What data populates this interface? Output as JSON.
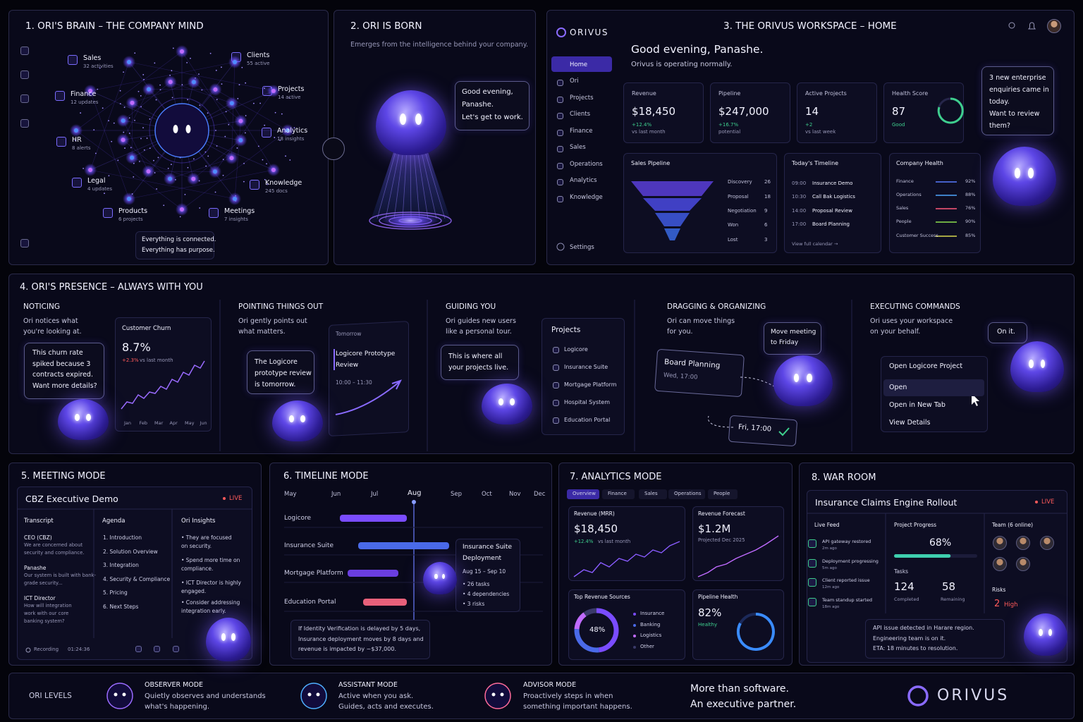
{
  "panel1": {
    "title": "1.  ORI'S BRAIN – THE COMPANY MIND",
    "nodes": [
      {
        "label": "Sales",
        "sub": "32 activities"
      },
      {
        "label": "Clients",
        "sub": "55 active"
      },
      {
        "label": "Finance",
        "sub": "12 updates"
      },
      {
        "label": "Projects",
        "sub": "14 active"
      },
      {
        "label": "HR",
        "sub": "8 alerts"
      },
      {
        "label": "Analytics",
        "sub": "18 insights"
      },
      {
        "label": "Legal",
        "sub": "4 updates"
      },
      {
        "label": "Knowledge",
        "sub": "245 docs"
      },
      {
        "label": "Products",
        "sub": "6 projects"
      },
      {
        "label": "Meetings",
        "sub": "7 insights"
      }
    ],
    "caption": [
      "Everything is connected.",
      "Everything has purpose."
    ]
  },
  "panel2": {
    "title": "2.  ORI IS BORN",
    "subtitle": "Emerges from the intelligence behind your company.",
    "bubble": [
      "Good evening,",
      "Panashe.",
      "Let's get to work."
    ]
  },
  "panel3": {
    "title": "3.  THE ORIVUS WORKSPACE – HOME",
    "brand": "ORIVUS",
    "nav": [
      "Home",
      "Ori",
      "Projects",
      "Clients",
      "Finance",
      "Sales",
      "Operations",
      "Analytics",
      "Knowledge"
    ],
    "settings": "Settings",
    "greeting": "Good evening, Panashe.",
    "status": "Orivus is operating normally.",
    "kpis": [
      {
        "label": "Revenue",
        "value": "$18,450",
        "delta": "+12.4%",
        "note": "vs last month"
      },
      {
        "label": "Pipeline",
        "value": "$247,000",
        "delta": "+16.7%",
        "note": "potential"
      },
      {
        "label": "Active Projects",
        "value": "14",
        "delta": "+2",
        "note": "vs last week"
      },
      {
        "label": "Health Score",
        "value": "87",
        "delta": "Good"
      }
    ],
    "pipeline": {
      "title": "Sales Pipeline",
      "stages": [
        {
          "name": "Discovery",
          "count": "26"
        },
        {
          "name": "Proposal",
          "count": "18"
        },
        {
          "name": "Negotiation",
          "count": "9"
        },
        {
          "name": "Won",
          "count": "6"
        },
        {
          "name": "Lost",
          "count": "3"
        }
      ]
    },
    "timeline": {
      "title": "Today's Timeline",
      "items": [
        {
          "time": "09:00",
          "label": "Insurance Demo"
        },
        {
          "time": "10:30",
          "label": "Call Bak Logistics"
        },
        {
          "time": "14:00",
          "label": "Proposal Review"
        },
        {
          "time": "17:00",
          "label": "Board Planning"
        }
      ],
      "link": "View full calendar →"
    },
    "health": {
      "title": "Company Health",
      "items": [
        {
          "name": "Finance",
          "value": "92%"
        },
        {
          "name": "Operations",
          "value": "88%"
        },
        {
          "name": "Sales",
          "value": "76%"
        },
        {
          "name": "People",
          "value": "90%"
        },
        {
          "name": "Customer Success",
          "value": "85%"
        }
      ]
    },
    "bubble": [
      "3 new enterprise",
      "enquiries came in",
      "today.",
      "Want to review",
      "them?"
    ]
  },
  "panel4": {
    "title": "4.  ORI'S PRESENCE – ALWAYS WITH YOU",
    "noticing": {
      "heading": "NOTICING",
      "desc": [
        "Ori notices what",
        "you're looking at."
      ],
      "bubble": [
        "This churn rate",
        "spiked because 3",
        "contracts expired.",
        "Want more details?"
      ],
      "card": {
        "title": "Customer Churn",
        "value": "8.7%",
        "delta": "+2.3%",
        "note": "vs last month",
        "months": [
          "Jan",
          "Feb",
          "Mar",
          "Apr",
          "May",
          "Jun"
        ]
      }
    },
    "pointing": {
      "heading": "POINTING THINGS OUT",
      "desc": [
        "Ori gently points out",
        "what matters."
      ],
      "bubble": [
        "The Logicore",
        "prototype review",
        "is tomorrow."
      ],
      "card": {
        "header": "Tomorrow",
        "title": [
          "Logicore Prototype",
          "Review"
        ],
        "time": "10:00 – 11:30"
      }
    },
    "guiding": {
      "heading": "GUIDING YOU",
      "desc": [
        "Ori guides new users",
        "like a personal tour."
      ],
      "bubble": [
        "This is where all",
        "your projects live."
      ],
      "card": {
        "title": "Projects",
        "items": [
          "Logicore",
          "Insurance Suite",
          "Mortgage Platform",
          "Hospital System",
          "Education Portal"
        ]
      }
    },
    "dragging": {
      "heading": "DRAGGING & ORGANIZING",
      "desc": [
        "Ori can move things",
        "for you."
      ],
      "card": {
        "title": "Board Planning",
        "time": "Wed, 17:00"
      },
      "bubble": [
        "Move meeting",
        "to Friday"
      ],
      "target": "Fri, 17:00"
    },
    "executing": {
      "heading": "EXECUTING COMMANDS",
      "desc": [
        "Ori uses your workspace",
        "on your behalf."
      ],
      "bubble": "On it.",
      "menu": [
        "Open Logicore Project",
        "Open",
        "Open in New Tab",
        "View Details"
      ]
    }
  },
  "panel5": {
    "title": "5.  MEETING MODE",
    "header": "CBZ Executive Demo",
    "live": "LIVE",
    "transcript": {
      "title": "Transcript",
      "entries": [
        {
          "speaker": "CEO (CBZ)",
          "text": [
            "We are concerned about",
            "security and compliance."
          ]
        },
        {
          "speaker": "Panashe",
          "text": [
            "Our system is built with bank-",
            "grade security..."
          ]
        },
        {
          "speaker": "ICT Director",
          "text": [
            "How will integration",
            "work with our core",
            "banking system?"
          ]
        }
      ]
    },
    "agenda": {
      "title": "Agenda",
      "items": [
        "1. Introduction",
        "2. Solution Overview",
        "3. Integration",
        "4. Security & Compliance",
        "5. Pricing",
        "6. Next Steps"
      ]
    },
    "insights": {
      "title": "Ori Insights",
      "items": [
        [
          "• They are focused",
          "on security."
        ],
        [
          "• Spend more time on",
          "compliance."
        ],
        [
          "• ICT Director is highly",
          "engaged."
        ],
        [
          "• Consider addressing",
          "integration early."
        ]
      ]
    },
    "recording": "Recording",
    "time": "01:24:36"
  },
  "panel6": {
    "title": "6.  TIMELINE MODE",
    "months": [
      "May",
      "Jun",
      "Jul",
      "Aug",
      "Sep",
      "Oct",
      "Nov",
      "Dec"
    ],
    "rows": [
      "Logicore",
      "Insurance Suite",
      "Mortgage Platform",
      "Education Portal"
    ],
    "tooltip": {
      "title": [
        "Insurance Suite",
        "Deployment"
      ],
      "dates": "Aug 15 – Sep 10",
      "items": [
        "• 26 tasks",
        "• 4 dependencies",
        "• 3 risks"
      ]
    },
    "note": [
      "If Identity Verification is delayed by 5 days,",
      "Insurance deployment moves by 8 days and",
      "revenue is impacted by ~$37,000."
    ]
  },
  "panel7": {
    "title": "7.  ANALYTICS MODE",
    "tabs": [
      "Overview",
      "Finance",
      "Sales",
      "Operations",
      "People"
    ],
    "revenue": {
      "title": "Revenue (MRR)",
      "value": "$18,450",
      "delta": "+12.4%",
      "note": "vs last month"
    },
    "forecast": {
      "title": "Revenue Forecast",
      "value": "$1.2M",
      "note": "Projected Dec 2025"
    },
    "sources": {
      "title": "Top Revenue Sources",
      "center": "48%",
      "items": [
        "Insurance",
        "Banking",
        "Logistics",
        "Other"
      ]
    },
    "pipeline": {
      "title": "Pipeline Health",
      "value": "82%",
      "status": "Healthy"
    }
  },
  "panel8": {
    "title": "8.  WAR ROOM",
    "header": "Insurance Claims Engine Rollout",
    "live": "LIVE",
    "feed": {
      "title": "Live Feed",
      "items": [
        {
          "text": "API gateway restored",
          "time": "2m ago"
        },
        {
          "text": "Deployment progressing",
          "time": "5m ago"
        },
        {
          "text": "Client reported issue",
          "time": "12m ago"
        },
        {
          "text": "Team standup started",
          "time": "18m ago"
        }
      ]
    },
    "progress": {
      "title": "Project Progress",
      "value": "68%",
      "tasks": "Tasks",
      "completed": {
        "value": "124",
        "label": "Completed"
      },
      "remaining": {
        "value": "58",
        "label": "Remaining"
      }
    },
    "team": "Team (6 online)",
    "risks": {
      "title": "Risks",
      "value": "2",
      "label": "High"
    },
    "alert": [
      "API issue detected in Harare region.",
      "Engineering team is on it.",
      "ETA: 18 minutes to resolution."
    ]
  },
  "footer": {
    "label": "ORI LEVELS",
    "levels": [
      {
        "title": "OBSERVER MODE",
        "desc": [
          "Quietly observes and understands",
          "what's happening."
        ]
      },
      {
        "title": "ASSISTANT MODE",
        "desc": [
          "Active when you ask.",
          "Guides, acts and executes."
        ]
      },
      {
        "title": "ADVISOR MODE",
        "desc": [
          "Proactively steps in when",
          "something important happens."
        ]
      }
    ],
    "tagline": [
      "More than software.",
      "An executive partner."
    ],
    "brand": "ORIVUS"
  }
}
